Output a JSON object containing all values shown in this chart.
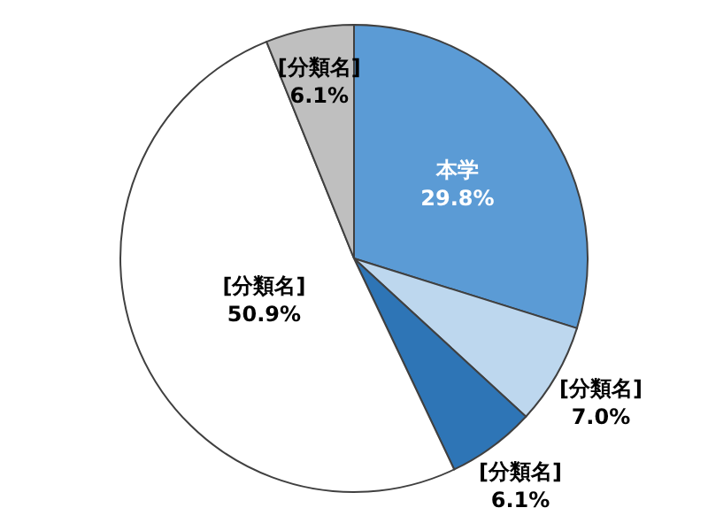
{
  "chart_data": {
    "type": "pie",
    "categories": [
      "本学",
      "[分類名]",
      "[分類名]",
      "[分類名]",
      "[分類名]"
    ],
    "values": [
      29.8,
      7.0,
      6.1,
      50.9,
      6.1
    ],
    "colors": [
      "#5b9bd5",
      "#bdd7ee",
      "#2e75b6",
      "#ffffff",
      "#bfbfbf"
    ],
    "value_labels": [
      "29.8%",
      "7.0%",
      "6.1%",
      "50.9%",
      "6.1%"
    ]
  }
}
